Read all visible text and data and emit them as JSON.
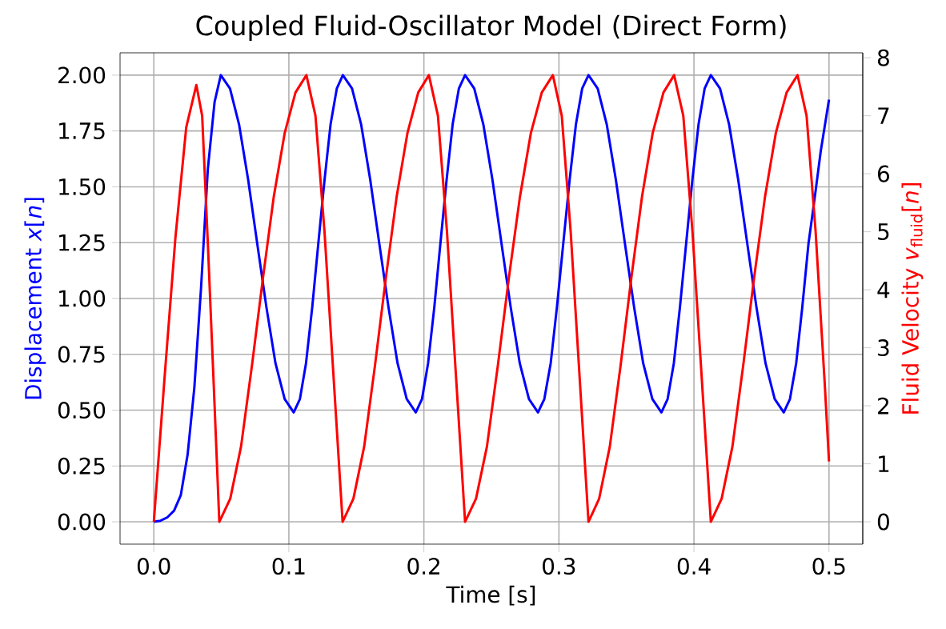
{
  "chart_data": {
    "type": "line",
    "title": "Coupled Fluid-Oscillator Model (Direct Form)",
    "xlabel": "Time [s]",
    "ylabel": "Displacement *x*[*n*]",
    "y2label": "Fluid Velocity *v*$_{fluid}$[*n*]",
    "xlim": [
      -0.025,
      0.525
    ],
    "xticks": [
      {
        "value": 0,
        "label": "0.0"
      },
      0.1,
      0.2,
      0.3,
      0.4,
      0.5
    ],
    "ylim": [
      -0.1,
      2.1
    ],
    "yticks": [
      {
        "value": 0,
        "label": "0.00"
      },
      0.25,
      {
        "value": 0.5,
        "label": "0.50"
      },
      0.75,
      {
        "value": 1,
        "label": "1.00"
      },
      1.25,
      {
        "value": 1.5,
        "label": "1.50"
      },
      1.75,
      {
        "value": 2,
        "label": "2.00"
      }
    ],
    "y2lim": [
      -0.385,
      8.085
    ],
    "y2ticks": [
      0,
      1,
      2,
      3,
      4,
      5,
      6,
      7,
      8
    ],
    "grid": true,
    "marker": "none",
    "line_style": "solid",
    "series": [
      {
        "color": "#0000ff",
        "axis": "y",
        "x": [
          0,
          0.005,
          0.01,
          0.015,
          0.02,
          0.025,
          0.03,
          0.035,
          0.04,
          0.045,
          0.0496,
          0.0564,
          0.0631,
          0.0699,
          0.0766,
          0.0834,
          0.0901,
          0.0969,
          0.1036,
          0.1082,
          0.1127,
          0.1173,
          0.1218,
          0.1264,
          0.1309,
          0.1355,
          0.14,
          0.1468,
          0.1535,
          0.1603,
          0.167,
          0.1738,
          0.1805,
          0.1873,
          0.194,
          0.1986,
          0.2031,
          0.2077,
          0.2122,
          0.2168,
          0.2213,
          0.2259,
          0.2305,
          0.2373,
          0.244,
          0.2508,
          0.2575,
          0.2643,
          0.271,
          0.2778,
          0.2845,
          0.2892,
          0.2939,
          0.2985,
          0.3032,
          0.3079,
          0.3126,
          0.3172,
          0.3219,
          0.3287,
          0.3354,
          0.3422,
          0.3489,
          0.3557,
          0.3624,
          0.3692,
          0.3759,
          0.3805,
          0.3851,
          0.3896,
          0.3942,
          0.3988,
          0.4034,
          0.4079,
          0.4125,
          0.4193,
          0.426,
          0.4328,
          0.4395,
          0.4463,
          0.453,
          0.4598,
          0.4665,
          0.4711,
          0.4757,
          0.4802,
          0.4848,
          0.4894,
          0.4939,
          0.5
        ],
        "values": [
          0,
          0.005,
          0.02,
          0.05,
          0.12,
          0.3,
          0.6,
          1.05,
          1.58,
          1.88,
          2.0,
          1.94,
          1.78,
          1.53,
          1.245,
          0.96,
          0.71,
          0.55,
          0.49,
          0.55,
          0.71,
          0.96,
          1.245,
          1.53,
          1.78,
          1.94,
          2.0,
          1.94,
          1.78,
          1.53,
          1.245,
          0.96,
          0.71,
          0.55,
          0.49,
          0.55,
          0.71,
          0.96,
          1.245,
          1.53,
          1.78,
          1.94,
          2.0,
          1.94,
          1.78,
          1.53,
          1.245,
          0.96,
          0.71,
          0.55,
          0.49,
          0.55,
          0.71,
          0.96,
          1.245,
          1.53,
          1.78,
          1.94,
          2.0,
          1.94,
          1.78,
          1.53,
          1.245,
          0.96,
          0.71,
          0.55,
          0.49,
          0.55,
          0.71,
          0.96,
          1.245,
          1.53,
          1.78,
          1.94,
          2.0,
          1.94,
          1.78,
          1.53,
          1.245,
          0.96,
          0.71,
          0.55,
          0.49,
          0.55,
          0.71,
          0.96,
          1.245,
          1.45,
          1.66,
          1.89
        ]
      },
      {
        "color": "#ff0000",
        "axis": "y2",
        "x": [
          0,
          0.008,
          0.016,
          0.024,
          0.0315,
          0.0358,
          0.04,
          0.0443,
          0.0485,
          0.0566,
          0.0646,
          0.0727,
          0.0808,
          0.0888,
          0.0969,
          0.1049,
          0.113,
          0.1197,
          0.1264,
          0.1331,
          0.1398,
          0.1478,
          0.1558,
          0.1638,
          0.1718,
          0.1798,
          0.1878,
          0.1958,
          0.2037,
          0.2104,
          0.2171,
          0.2238,
          0.2305,
          0.2386,
          0.2467,
          0.2548,
          0.2629,
          0.2711,
          0.2792,
          0.2873,
          0.2955,
          0.3021,
          0.3087,
          0.3153,
          0.3219,
          0.3298,
          0.3377,
          0.3457,
          0.3536,
          0.3615,
          0.3694,
          0.3774,
          0.3853,
          0.3921,
          0.3989,
          0.4057,
          0.4125,
          0.4205,
          0.4285,
          0.4365,
          0.4445,
          0.4526,
          0.4606,
          0.4686,
          0.4767,
          0.4834,
          0.4901,
          0.4968,
          0.5
        ],
        "values": [
          0,
          2.5,
          4.9,
          6.8,
          7.53,
          7.0,
          4.8,
          2.4,
          0,
          0.4,
          1.3,
          2.7,
          4.2,
          5.6,
          6.7,
          7.4,
          7.7,
          7.0,
          5.0,
          2.5,
          0,
          0.4,
          1.3,
          2.7,
          4.2,
          5.6,
          6.7,
          7.4,
          7.7,
          7.0,
          5.0,
          2.5,
          0,
          0.4,
          1.3,
          2.7,
          4.2,
          5.6,
          6.7,
          7.4,
          7.7,
          7.0,
          5.0,
          2.5,
          0,
          0.4,
          1.3,
          2.7,
          4.2,
          5.6,
          6.7,
          7.4,
          7.7,
          7.0,
          5.0,
          2.5,
          0,
          0.4,
          1.3,
          2.7,
          4.2,
          5.6,
          6.7,
          7.4,
          7.7,
          7.0,
          5.0,
          2.4,
          1.04
        ]
      }
    ]
  }
}
